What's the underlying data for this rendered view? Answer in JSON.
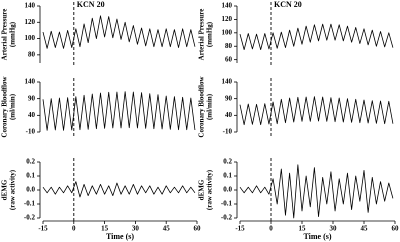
{
  "chart_data": [
    {
      "type": "line",
      "ylabel": [
        "Arterial Pressure",
        "(mmHg)"
      ],
      "annotation": "KCN 20",
      "vline": 0,
      "xlim": [
        -15,
        60
      ],
      "ylim": [
        70,
        140
      ],
      "yticks": [
        80,
        100,
        120,
        140
      ],
      "x": [
        -15,
        -13,
        -11,
        -9,
        -7,
        -5,
        -3,
        -1,
        1,
        3,
        5,
        7,
        9,
        11,
        13,
        15,
        17,
        19,
        21,
        23,
        25,
        27,
        29,
        31,
        33,
        35,
        37,
        39,
        41,
        43,
        45,
        47,
        49,
        51,
        53,
        55,
        57,
        59
      ],
      "series": [
        {
          "color": "#000000",
          "values": [
            108,
            88,
            109,
            89,
            108,
            88,
            110,
            89,
            112,
            90,
            118,
            95,
            125,
            100,
            128,
            102,
            127,
            101,
            124,
            99,
            120,
            96,
            116,
            93,
            113,
            91,
            112,
            90,
            111,
            90,
            112,
            90,
            111,
            89,
            112,
            90,
            111,
            90
          ]
        }
      ]
    },
    {
      "type": "line",
      "ylabel": [
        "Arterial Pressure",
        "(mmHg)"
      ],
      "annotation": "KCN 20",
      "vline": 0,
      "xlim": [
        -15,
        60
      ],
      "ylim": [
        55,
        140
      ],
      "yticks": [
        60,
        80,
        100,
        120,
        140
      ],
      "x": [
        -15,
        -13,
        -11,
        -9,
        -7,
        -5,
        -3,
        -1,
        1,
        3,
        5,
        7,
        9,
        11,
        13,
        15,
        17,
        19,
        21,
        23,
        25,
        27,
        29,
        31,
        33,
        35,
        37,
        39,
        41,
        43,
        45,
        47,
        49,
        51,
        53,
        55,
        57,
        59
      ],
      "series": [
        {
          "color": "#000000",
          "values": [
            98,
            75,
            99,
            76,
            98,
            75,
            99,
            76,
            100,
            77,
            101,
            78,
            104,
            80,
            107,
            83,
            110,
            86,
            112,
            88,
            113,
            89,
            113,
            89,
            112,
            88,
            110,
            86,
            108,
            84,
            106,
            82,
            104,
            80,
            102,
            79,
            100,
            78
          ]
        }
      ]
    },
    {
      "type": "line",
      "ylabel": [
        "Coronary Bloodflow",
        "(ml/min)"
      ],
      "vline": 0,
      "xlim": [
        -15,
        60
      ],
      "ylim": [
        -10,
        140
      ],
      "yticks": [
        -10,
        40,
        90,
        140
      ],
      "x": [
        -15,
        -13,
        -11,
        -9,
        -7,
        -5,
        -3,
        -1,
        1,
        3,
        5,
        7,
        9,
        11,
        13,
        15,
        17,
        19,
        21,
        23,
        25,
        27,
        29,
        31,
        33,
        35,
        37,
        39,
        41,
        43,
        45,
        47,
        49,
        51,
        53,
        55,
        57,
        59
      ],
      "series": [
        {
          "color": "#000000",
          "values": [
            88,
            -5,
            90,
            -4,
            92,
            -5,
            93,
            -4,
            96,
            -3,
            100,
            -2,
            104,
            0,
            107,
            1,
            109,
            2,
            110,
            2,
            111,
            3,
            110,
            2,
            108,
            1,
            105,
            0,
            102,
            -1,
            98,
            -2,
            96,
            -3,
            94,
            -3,
            92,
            -4
          ]
        }
      ]
    },
    {
      "type": "line",
      "ylabel": [
        "Coronary Bloodflow",
        "(ml/min)"
      ],
      "vline": 0,
      "xlim": [
        -15,
        60
      ],
      "ylim": [
        -10,
        140
      ],
      "yticks": [
        -10,
        40,
        90,
        140
      ],
      "x": [
        -15,
        -13,
        -11,
        -9,
        -7,
        -5,
        -3,
        -1,
        1,
        3,
        5,
        7,
        9,
        11,
        13,
        15,
        17,
        19,
        21,
        23,
        25,
        27,
        29,
        31,
        33,
        35,
        37,
        39,
        41,
        43,
        45,
        47,
        49,
        51,
        53,
        55,
        57,
        59
      ],
      "series": [
        {
          "color": "#000000",
          "values": [
            72,
            12,
            74,
            13,
            73,
            12,
            75,
            14,
            80,
            15,
            88,
            18,
            92,
            20,
            94,
            22,
            95,
            22,
            96,
            23,
            95,
            22,
            93,
            21,
            92,
            20,
            90,
            19,
            88,
            18,
            86,
            17,
            84,
            16,
            83,
            15,
            82,
            15
          ]
        }
      ]
    },
    {
      "type": "line",
      "ylabel": [
        "dEMG",
        "(raw activity)"
      ],
      "vline": 0,
      "xlabel": "Time (s)",
      "xlim": [
        -15,
        60
      ],
      "xticks": [
        -15,
        0,
        15,
        30,
        45,
        60
      ],
      "ylim": [
        -0.2,
        0.2
      ],
      "yticks": [
        -0.2,
        -0.1,
        {
          "value": 0,
          "label": "0.0"
        },
        0.1,
        0.2
      ],
      "x": [
        -15,
        -13,
        -11,
        -9,
        -7,
        -5,
        -3,
        -1,
        1,
        3,
        5,
        7,
        9,
        11,
        13,
        15,
        17,
        19,
        21,
        23,
        25,
        27,
        29,
        31,
        33,
        35,
        37,
        39,
        41,
        43,
        45,
        47,
        49,
        51,
        53,
        55,
        57,
        59
      ],
      "series": [
        {
          "color": "#000000",
          "values": [
            0.02,
            -0.02,
            0.02,
            -0.03,
            0.02,
            -0.02,
            0.03,
            -0.02,
            0.06,
            -0.05,
            0.04,
            -0.04,
            0.03,
            -0.03,
            0.04,
            -0.03,
            0.03,
            -0.04,
            0.05,
            -0.03,
            0.03,
            -0.03,
            0.04,
            -0.03,
            0.03,
            -0.02,
            0.03,
            -0.03,
            0.02,
            -0.03,
            0.03,
            -0.02,
            0.02,
            -0.02,
            0.03,
            -0.02,
            0.02,
            -0.02
          ]
        }
      ]
    },
    {
      "type": "line",
      "ylabel": [
        "dEMG",
        "(raw activity)"
      ],
      "vline": 0,
      "xlabel": "Time (s)",
      "xlim": [
        -15,
        60
      ],
      "xticks": [
        -15,
        0,
        15,
        30,
        45,
        60
      ],
      "ylim": [
        -0.2,
        0.2
      ],
      "yticks": [
        -0.2,
        -0.1,
        {
          "value": 0,
          "label": "0.0"
        },
        0.1,
        0.2
      ],
      "x": [
        -15,
        -13,
        -11,
        -9,
        -7,
        -5,
        -3,
        -1,
        1,
        3,
        5,
        7,
        9,
        11,
        13,
        15,
        17,
        19,
        21,
        23,
        25,
        27,
        29,
        31,
        33,
        35,
        37,
        39,
        41,
        43,
        45,
        47,
        49,
        51,
        53,
        55,
        57,
        59
      ],
      "series": [
        {
          "color": "#000000",
          "values": [
            0.02,
            -0.02,
            0.02,
            -0.02,
            0.03,
            -0.02,
            0.02,
            -0.03,
            0.08,
            -0.1,
            0.15,
            -0.18,
            0.12,
            -0.2,
            0.18,
            -0.15,
            0.1,
            -0.12,
            0.16,
            -0.19,
            0.09,
            -0.1,
            0.13,
            -0.15,
            0.08,
            -0.1,
            0.12,
            -0.14,
            0.1,
            -0.08,
            0.14,
            -0.16,
            0.09,
            -0.1,
            0.06,
            -0.08,
            0.05,
            -0.06
          ]
        }
      ]
    }
  ]
}
